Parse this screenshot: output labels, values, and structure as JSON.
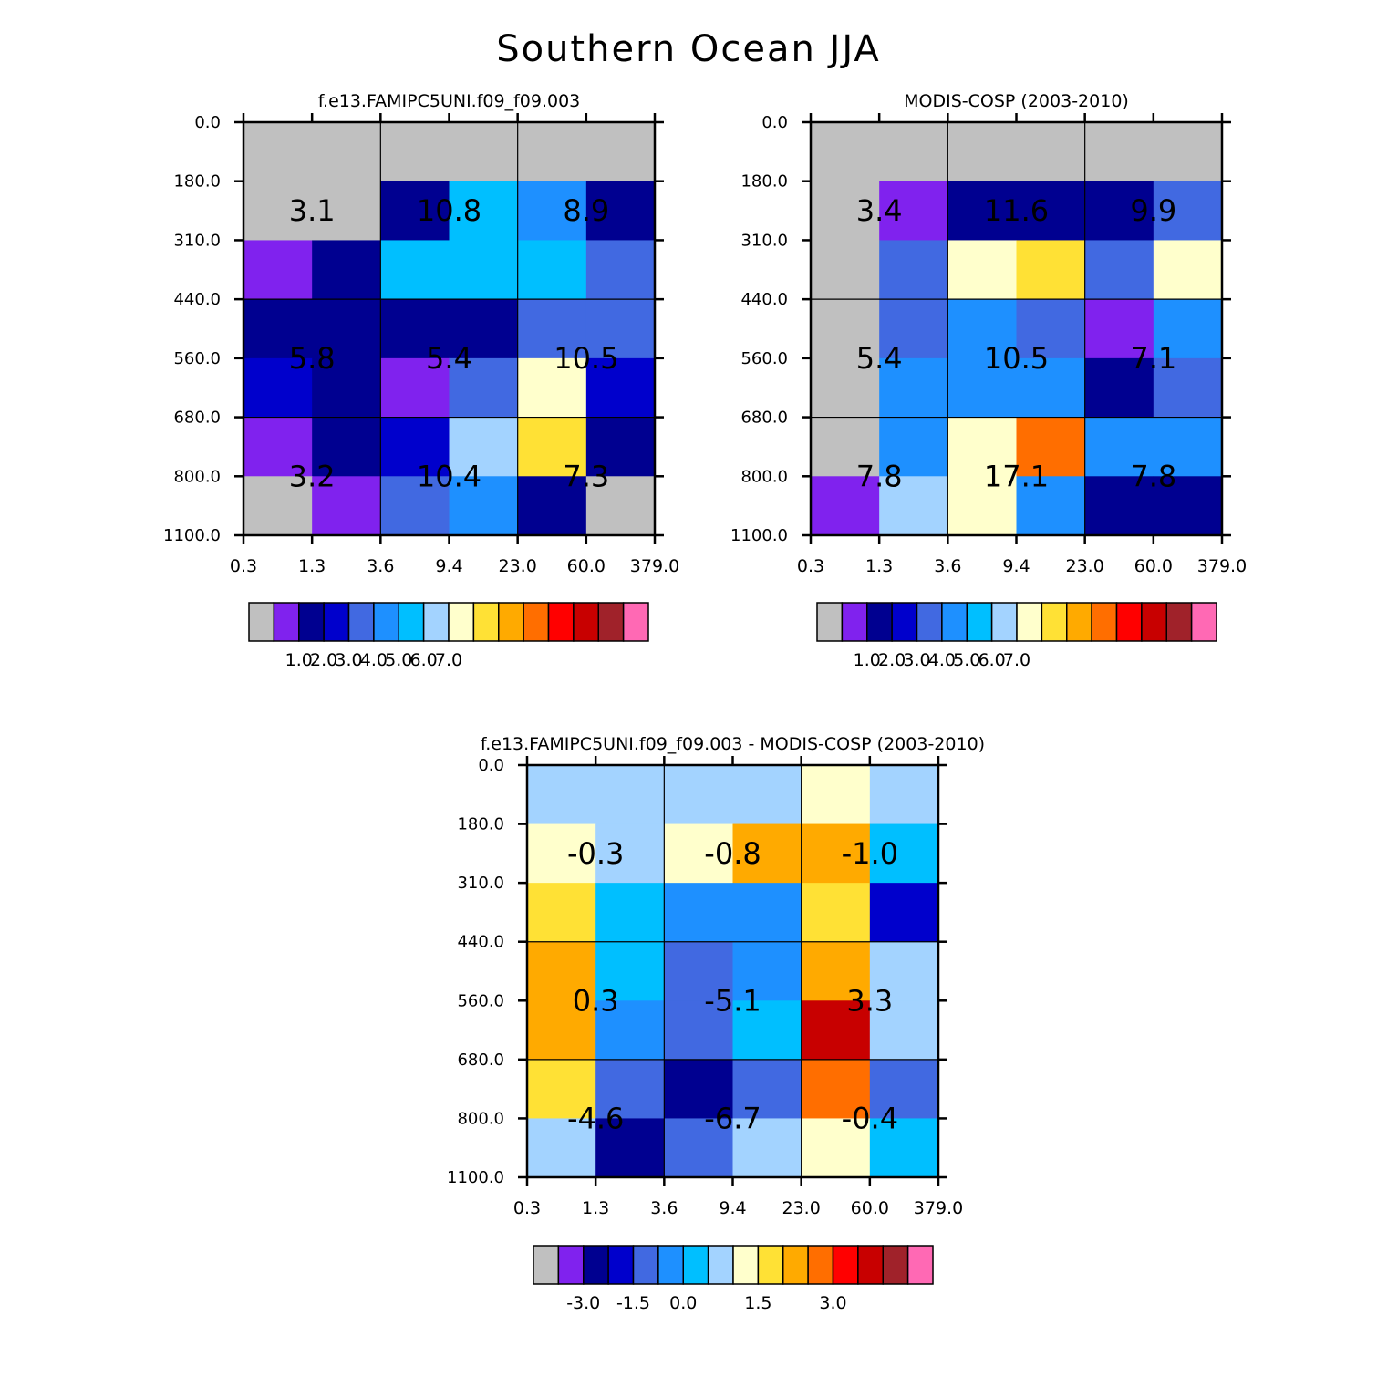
{
  "title": "Southern Ocean JJA",
  "palette": [
    "#c0c0c0",
    "#8022ee",
    "#000090",
    "#0000cc",
    "#4169e1",
    "#1e90ff",
    "#00bfff",
    "#a3d3ff",
    "#ffffcc",
    "#ffe135",
    "#ffaa00",
    "#ff6e00",
    "#ff0000",
    "#c80000",
    "#a0222a",
    "#ff69b4"
  ],
  "chart_data": [
    {
      "type": "heatmap",
      "title": "f.e13.FAMIPC5UNI.f09_f09.003",
      "x_tick_labels": [
        "0.3",
        "1.3",
        "3.6",
        "9.4",
        "23.0",
        "60.0",
        "379.0"
      ],
      "y_tick_labels": [
        "0.0",
        "180.0",
        "310.0",
        "440.0",
        "560.0",
        "680.0",
        "800.0",
        "1100.0"
      ],
      "cell_colors": [
        [
          0,
          0,
          0,
          0,
          0,
          0
        ],
        [
          0,
          0,
          2,
          6,
          5,
          2
        ],
        [
          1,
          2,
          6,
          6,
          6,
          4
        ],
        [
          2,
          2,
          2,
          2,
          4,
          4
        ],
        [
          3,
          2,
          1,
          4,
          8,
          3
        ],
        [
          1,
          2,
          3,
          7,
          9,
          2
        ],
        [
          0,
          1,
          4,
          5,
          2,
          0
        ]
      ],
      "block_totals": [
        [
          "3.1",
          "10.8",
          "8.9"
        ],
        [
          "5.8",
          "5.4",
          "10.5"
        ],
        [
          "3.2",
          "10.4",
          "7.3"
        ]
      ],
      "colorbar_labels": [
        "1.0",
        "2.0",
        "3.0",
        "4.0",
        "5.0",
        "6.0",
        "7.0"
      ]
    },
    {
      "type": "heatmap",
      "title": "MODIS-COSP (2003-2010)",
      "x_tick_labels": [
        "0.3",
        "1.3",
        "3.6",
        "9.4",
        "23.0",
        "60.0",
        "379.0"
      ],
      "y_tick_labels": [
        "0.0",
        "180.0",
        "310.0",
        "440.0",
        "560.0",
        "680.0",
        "800.0",
        "1100.0"
      ],
      "cell_colors": [
        [
          0,
          0,
          0,
          0,
          0,
          0
        ],
        [
          0,
          1,
          2,
          2,
          2,
          4
        ],
        [
          0,
          4,
          8,
          9,
          4,
          8
        ],
        [
          0,
          4,
          5,
          4,
          1,
          5
        ],
        [
          0,
          5,
          5,
          5,
          2,
          4
        ],
        [
          0,
          5,
          8,
          11,
          5,
          5
        ],
        [
          1,
          7,
          8,
          5,
          2,
          2
        ]
      ],
      "block_totals": [
        [
          "3.4",
          "11.6",
          "9.9"
        ],
        [
          "5.4",
          "10.5",
          "7.1"
        ],
        [
          "7.8",
          "17.1",
          "7.8"
        ]
      ],
      "colorbar_labels": [
        "1.0",
        "2.0",
        "3.0",
        "4.0",
        "5.0",
        "6.0",
        "7.0"
      ]
    },
    {
      "type": "heatmap",
      "title": "f.e13.FAMIPC5UNI.f09_f09.003 - MODIS-COSP (2003-2010)",
      "x_tick_labels": [
        "0.3",
        "1.3",
        "3.6",
        "9.4",
        "23.0",
        "60.0",
        "379.0"
      ],
      "y_tick_labels": [
        "0.0",
        "180.0",
        "310.0",
        "440.0",
        "560.0",
        "680.0",
        "800.0",
        "1100.0"
      ],
      "cell_colors": [
        [
          7,
          7,
          7,
          7,
          8,
          7
        ],
        [
          8,
          7,
          8,
          10,
          10,
          6
        ],
        [
          9,
          6,
          5,
          5,
          9,
          3
        ],
        [
          10,
          6,
          4,
          5,
          10,
          7
        ],
        [
          10,
          5,
          4,
          6,
          13,
          7
        ],
        [
          9,
          4,
          2,
          4,
          11,
          4
        ],
        [
          7,
          2,
          4,
          7,
          8,
          6
        ]
      ],
      "block_totals": [
        [
          "-0.3",
          "-0.8",
          "-1.0"
        ],
        [
          "0.3",
          "-5.1",
          "3.3"
        ],
        [
          "-4.6",
          "-6.7",
          "-0.4"
        ]
      ],
      "colorbar_labels": [
        "-3.0",
        "-1.5",
        "0.0",
        "1.5",
        "3.0"
      ]
    }
  ]
}
